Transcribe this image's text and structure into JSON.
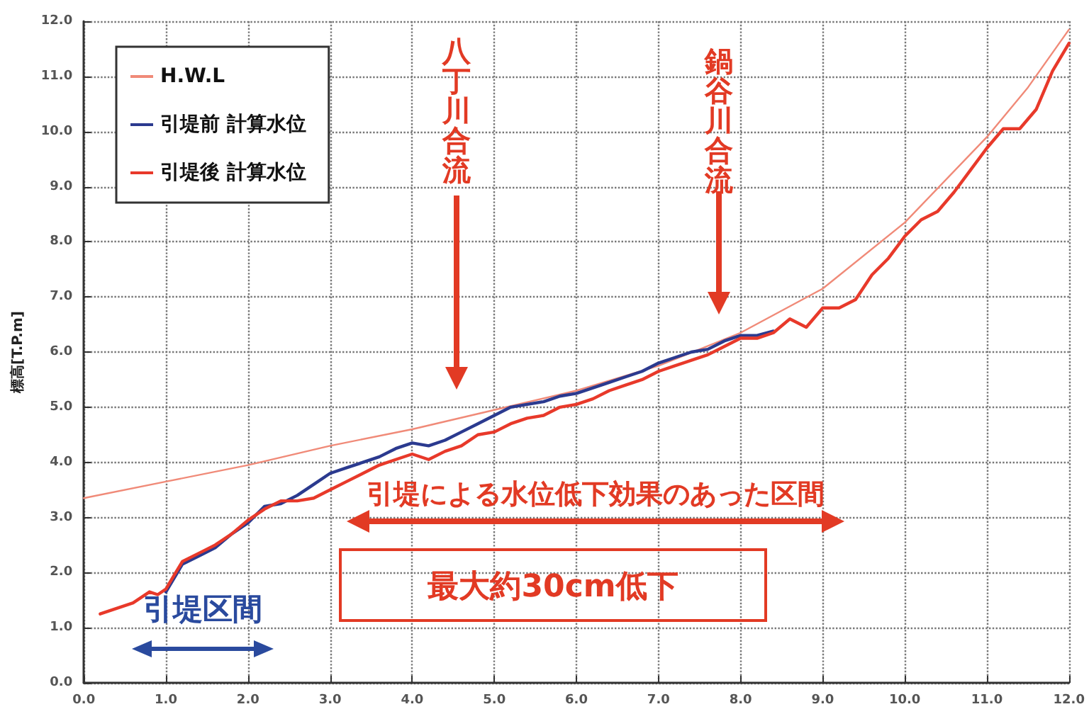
{
  "chart_data": {
    "type": "line",
    "ylabel": "標高[T.P.m]",
    "xlim": [
      0,
      12
    ],
    "ylim": [
      0,
      12
    ],
    "xticks": [
      {
        "value": 0,
        "label": "0.0"
      },
      {
        "value": 1,
        "label": "1.0"
      },
      {
        "value": 2,
        "label": "2.0"
      },
      {
        "value": 3,
        "label": "3.0"
      },
      {
        "value": 4,
        "label": "4.0"
      },
      {
        "value": 5,
        "label": "5.0"
      },
      {
        "value": 6,
        "label": "6.0"
      },
      {
        "value": 7,
        "label": "7.0"
      },
      {
        "value": 8,
        "label": "8.0"
      },
      {
        "value": 9,
        "label": "9.0"
      },
      {
        "value": 10,
        "label": "10.0"
      },
      {
        "value": 11,
        "label": "11.0"
      },
      {
        "value": 12,
        "label": "12.0"
      }
    ],
    "yticks": [
      {
        "value": 0,
        "label": "0.0"
      },
      {
        "value": 1,
        "label": "1.0"
      },
      {
        "value": 2,
        "label": "2.0"
      },
      {
        "value": 3,
        "label": "3.0"
      },
      {
        "value": 4,
        "label": "4.0"
      },
      {
        "value": 5,
        "label": "5.0"
      },
      {
        "value": 6,
        "label": "6.0"
      },
      {
        "value": 7,
        "label": "7.0"
      },
      {
        "value": 8,
        "label": "8.0"
      },
      {
        "value": 9,
        "label": "9.0"
      },
      {
        "value": 10,
        "label": "10.0"
      },
      {
        "value": 11,
        "label": "11.0"
      },
      {
        "value": 12,
        "label": "12.0"
      }
    ],
    "grid": true,
    "legend": "top left",
    "marker": "none",
    "line_style": "solid",
    "series": [
      {
        "name": "H.W.L",
        "color": "#f08a78",
        "x": [
          0,
          1,
          2,
          3,
          4,
          5,
          6,
          7,
          8,
          9,
          10,
          11,
          11.5,
          12
        ],
        "values": [
          3.35,
          3.65,
          3.95,
          4.3,
          4.6,
          4.95,
          5.3,
          5.75,
          6.35,
          7.15,
          8.35,
          9.9,
          10.8,
          11.85
        ]
      },
      {
        "name": "引堤前 計算水位",
        "color": "#2b3a8f",
        "x": [
          1,
          1.2,
          1.4,
          1.6,
          1.8,
          2,
          2.2,
          2.4,
          2.6,
          2.8,
          3,
          3.2,
          3.4,
          3.6,
          3.8,
          4,
          4.2,
          4.4,
          4.6,
          4.8,
          5,
          5.2,
          5.4,
          5.6,
          5.8,
          6,
          6.2,
          6.4,
          6.6,
          6.8,
          7,
          7.2,
          7.4,
          7.6,
          7.8,
          8,
          8.2,
          8.4
        ],
        "values": [
          1.65,
          2.15,
          2.3,
          2.45,
          2.7,
          2.9,
          3.2,
          3.25,
          3.4,
          3.6,
          3.8,
          3.9,
          4,
          4.1,
          4.25,
          4.35,
          4.3,
          4.4,
          4.55,
          4.7,
          4.85,
          5,
          5.05,
          5.1,
          5.2,
          5.25,
          5.35,
          5.45,
          5.55,
          5.65,
          5.8,
          5.9,
          6,
          6.05,
          6.2,
          6.3,
          6.3,
          6.38
        ]
      },
      {
        "name": "引堤後 計算水位",
        "color": "#e8392a",
        "x": [
          0.2,
          0.4,
          0.6,
          0.8,
          0.9,
          1,
          1.1,
          1.2,
          1.4,
          1.6,
          1.8,
          2,
          2.2,
          2.4,
          2.6,
          2.8,
          3,
          3.2,
          3.4,
          3.6,
          3.8,
          4,
          4.2,
          4.4,
          4.6,
          4.8,
          5,
          5.2,
          5.4,
          5.6,
          5.8,
          6,
          6.2,
          6.4,
          6.6,
          6.8,
          7,
          7.2,
          7.4,
          7.6,
          7.8,
          8,
          8.2,
          8.4,
          8.6,
          8.8,
          9,
          9.2,
          9.4,
          9.6,
          9.8,
          10,
          10.2,
          10.4,
          10.6,
          10.8,
          11,
          11.2,
          11.4,
          11.6,
          11.8,
          12
        ],
        "values": [
          1.25,
          1.35,
          1.45,
          1.65,
          1.6,
          1.7,
          1.95,
          2.2,
          2.35,
          2.5,
          2.7,
          2.95,
          3.15,
          3.3,
          3.3,
          3.35,
          3.5,
          3.65,
          3.8,
          3.95,
          4.05,
          4.15,
          4.05,
          4.2,
          4.3,
          4.5,
          4.55,
          4.7,
          4.8,
          4.85,
          5,
          5.05,
          5.15,
          5.3,
          5.4,
          5.5,
          5.65,
          5.75,
          5.85,
          5.95,
          6.1,
          6.25,
          6.25,
          6.35,
          6.6,
          6.45,
          6.8,
          6.8,
          6.95,
          7.4,
          7.7,
          8.1,
          8.4,
          8.55,
          8.9,
          9.3,
          9.7,
          10.05,
          10.05,
          10.4,
          11.1,
          11.6
        ]
      }
    ],
    "annotations": [
      "八丁川合流",
      "鍋谷川合流",
      "引堤による水位低下効果のあった区間",
      "最大約30cm低下",
      "引堤区間"
    ]
  }
}
